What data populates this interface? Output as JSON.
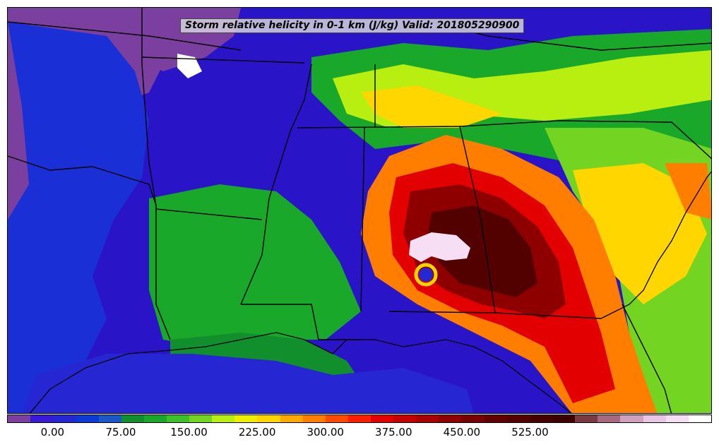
{
  "title": "Storm relative helicity in 0-1 km (J/kg) Valid: 201805290900",
  "colorbar": {
    "colors": [
      "#7b3fa0",
      "#3a1ad6",
      "#2626d2",
      "#0b3bd4",
      "#1a58c8",
      "#118f2c",
      "#1aa82a",
      "#3cc12a",
      "#74d422",
      "#b8ee10",
      "#ecf000",
      "#ffd600",
      "#ffa800",
      "#ff7e00",
      "#ff4a00",
      "#ff1e00",
      "#e30000",
      "#c50000",
      "#a90000",
      "#8e0000",
      "#770000",
      "#620000",
      "#520000",
      "#450000",
      "#3c0000",
      "#7a3a42",
      "#a66a80",
      "#cfa0c0",
      "#e9c6e4",
      "#f6def4",
      "#ffffff"
    ],
    "ticks": [
      "0.00",
      "75.00",
      "150.00",
      "225.00",
      "300.00",
      "375.00",
      "450.00",
      "525.00"
    ]
  },
  "map": {
    "blobs": [
      {
        "level": "purple",
        "color": "#7b3fa0"
      },
      {
        "level": "green",
        "color": "#1aa82a"
      },
      {
        "level": "yellow-green",
        "color": "#b8ee10"
      },
      {
        "level": "yellow",
        "color": "#ffd600"
      },
      {
        "level": "orange",
        "color": "#ff7e00"
      },
      {
        "level": "red",
        "color": "#e30000"
      },
      {
        "level": "dark-red",
        "color": "#8e0000"
      },
      {
        "level": "very-dark-red",
        "color": "#520000"
      },
      {
        "level": "pink",
        "color": "#f6def4"
      }
    ]
  }
}
